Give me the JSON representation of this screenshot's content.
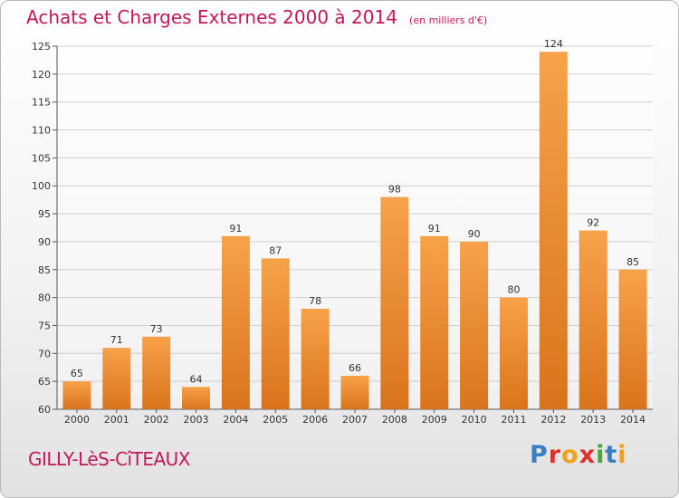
{
  "chart_data": {
    "type": "bar",
    "title": "Achats et Charges Externes 2000 à 2014",
    "subtitle": "(en milliers d'€)",
    "categories": [
      "2000",
      "2001",
      "2002",
      "2003",
      "2004",
      "2005",
      "2006",
      "2007",
      "2008",
      "2009",
      "2010",
      "2011",
      "2012",
      "2013",
      "2014"
    ],
    "values": [
      65,
      71,
      73,
      64,
      91,
      87,
      78,
      66,
      98,
      91,
      90,
      80,
      124,
      92,
      85
    ],
    "ylim": [
      60,
      125
    ],
    "yticks": [
      60,
      65,
      70,
      75,
      80,
      85,
      90,
      95,
      100,
      105,
      110,
      115,
      120,
      125
    ],
    "grid": true,
    "bar_color_top": "#f7a24a",
    "bar_color_bottom": "#d9741c"
  },
  "location": "GILLY-LèS-CîTEAUX",
  "logo": {
    "text": "Proxiti",
    "letters": [
      {
        "ch": "P",
        "color": "#3a7fc4"
      },
      {
        "ch": "r",
        "color": "#e0302a"
      },
      {
        "ch": "o",
        "color": "#f0a21a"
      },
      {
        "ch": "x",
        "color": "#e0302a"
      },
      {
        "ch": "i",
        "color": "#4aa83a"
      },
      {
        "ch": "t",
        "color": "#3a7fc4"
      },
      {
        "ch": "i",
        "color": "#f0a21a"
      }
    ]
  }
}
